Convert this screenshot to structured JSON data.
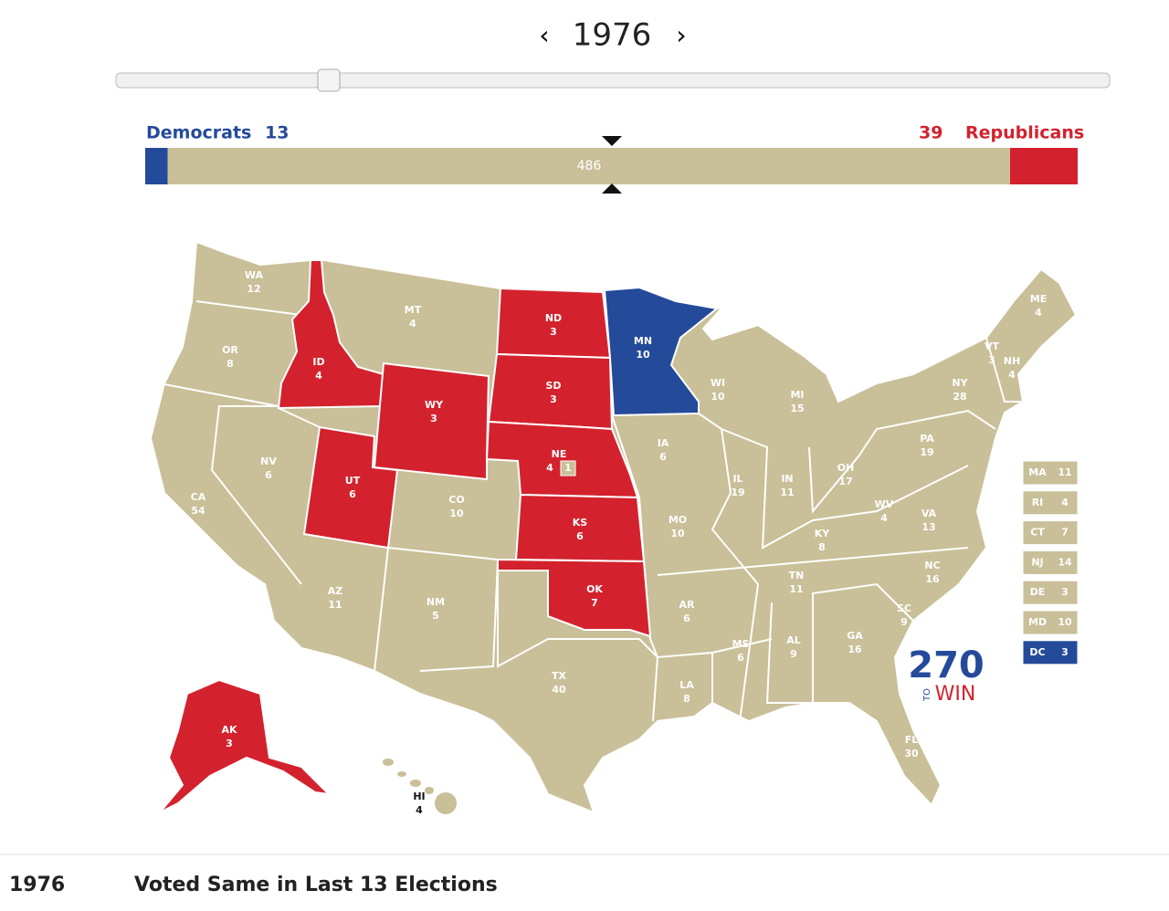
{
  "header": {
    "year": "1976"
  },
  "tally": {
    "dem_label": "Democrats",
    "dem": 13,
    "undecided": 486,
    "rep": 39,
    "rep_label": "Republicans",
    "dem_color": "#244a9a",
    "undecided_color": "#c9bf98",
    "rep_color": "#d3222e"
  },
  "states": [
    {
      "abbr": "WA",
      "ev": 12,
      "color": "#c9bf98"
    },
    {
      "abbr": "OR",
      "ev": 8,
      "color": "#c9bf98"
    },
    {
      "abbr": "CA",
      "ev": 54,
      "color": "#c9bf98"
    },
    {
      "abbr": "NV",
      "ev": 6,
      "color": "#c9bf98"
    },
    {
      "abbr": "ID",
      "ev": 4,
      "color": "#d3222e"
    },
    {
      "abbr": "MT",
      "ev": 4,
      "color": "#c9bf98"
    },
    {
      "abbr": "WY",
      "ev": 3,
      "color": "#d3222e"
    },
    {
      "abbr": "UT",
      "ev": 6,
      "color": "#d3222e"
    },
    {
      "abbr": "CO",
      "ev": 10,
      "color": "#c9bf98"
    },
    {
      "abbr": "AZ",
      "ev": 11,
      "color": "#c9bf98"
    },
    {
      "abbr": "NM",
      "ev": 5,
      "color": "#c9bf98"
    },
    {
      "abbr": "ND",
      "ev": 3,
      "color": "#d3222e"
    },
    {
      "abbr": "SD",
      "ev": 3,
      "color": "#d3222e"
    },
    {
      "abbr": "NE",
      "ev": 4,
      "extra": 1,
      "color": "#d3222e"
    },
    {
      "abbr": "KS",
      "ev": 6,
      "color": "#d3222e"
    },
    {
      "abbr": "OK",
      "ev": 7,
      "color": "#d3222e"
    },
    {
      "abbr": "TX",
      "ev": 40,
      "color": "#c9bf98"
    },
    {
      "abbr": "MN",
      "ev": 10,
      "color": "#244a9a"
    },
    {
      "abbr": "IA",
      "ev": 6,
      "color": "#c9bf98"
    },
    {
      "abbr": "MO",
      "ev": 10,
      "color": "#c9bf98"
    },
    {
      "abbr": "AR",
      "ev": 6,
      "color": "#c9bf98"
    },
    {
      "abbr": "LA",
      "ev": 8,
      "color": "#c9bf98"
    },
    {
      "abbr": "WI",
      "ev": 10,
      "color": "#c9bf98"
    },
    {
      "abbr": "IL",
      "ev": 19,
      "color": "#c9bf98"
    },
    {
      "abbr": "MI",
      "ev": 15,
      "color": "#c9bf98"
    },
    {
      "abbr": "IN",
      "ev": 11,
      "color": "#c9bf98"
    },
    {
      "abbr": "OH",
      "ev": 17,
      "color": "#c9bf98"
    },
    {
      "abbr": "KY",
      "ev": 8,
      "color": "#c9bf98"
    },
    {
      "abbr": "TN",
      "ev": 11,
      "color": "#c9bf98"
    },
    {
      "abbr": "MS",
      "ev": 6,
      "color": "#c9bf98"
    },
    {
      "abbr": "AL",
      "ev": 9,
      "color": "#c9bf98"
    },
    {
      "abbr": "GA",
      "ev": 16,
      "color": "#c9bf98"
    },
    {
      "abbr": "FL",
      "ev": 30,
      "color": "#c9bf98"
    },
    {
      "abbr": "SC",
      "ev": 9,
      "color": "#c9bf98"
    },
    {
      "abbr": "NC",
      "ev": 16,
      "color": "#c9bf98"
    },
    {
      "abbr": "VA",
      "ev": 13,
      "color": "#c9bf98"
    },
    {
      "abbr": "WV",
      "ev": 4,
      "color": "#c9bf98"
    },
    {
      "abbr": "PA",
      "ev": 19,
      "color": "#c9bf98"
    },
    {
      "abbr": "NY",
      "ev": 28,
      "color": "#c9bf98"
    },
    {
      "abbr": "VT",
      "ev": 3,
      "color": "#c9bf98"
    },
    {
      "abbr": "NH",
      "ev": 4,
      "color": "#c9bf98"
    },
    {
      "abbr": "ME",
      "ev": 4,
      "color": "#c9bf98"
    },
    {
      "abbr": "AK",
      "ev": 3,
      "color": "#d3222e"
    },
    {
      "abbr": "HI",
      "ev": 4,
      "color": "#c9bf98"
    }
  ],
  "small_states": [
    {
      "abbr": "MA",
      "ev": 11,
      "color": "#c9bf98"
    },
    {
      "abbr": "RI",
      "ev": 4,
      "color": "#c9bf98"
    },
    {
      "abbr": "CT",
      "ev": 7,
      "color": "#c9bf98"
    },
    {
      "abbr": "NJ",
      "ev": 14,
      "color": "#c9bf98"
    },
    {
      "abbr": "DE",
      "ev": 3,
      "color": "#c9bf98"
    },
    {
      "abbr": "MD",
      "ev": 10,
      "color": "#c9bf98"
    },
    {
      "abbr": "DC",
      "ev": 3,
      "color": "#244a9a"
    }
  ],
  "logo": {
    "number": "270",
    "to": "TO",
    "win": "WIN"
  },
  "footer": {
    "year": "1976",
    "description": "Voted Same in Last 13 Elections"
  }
}
